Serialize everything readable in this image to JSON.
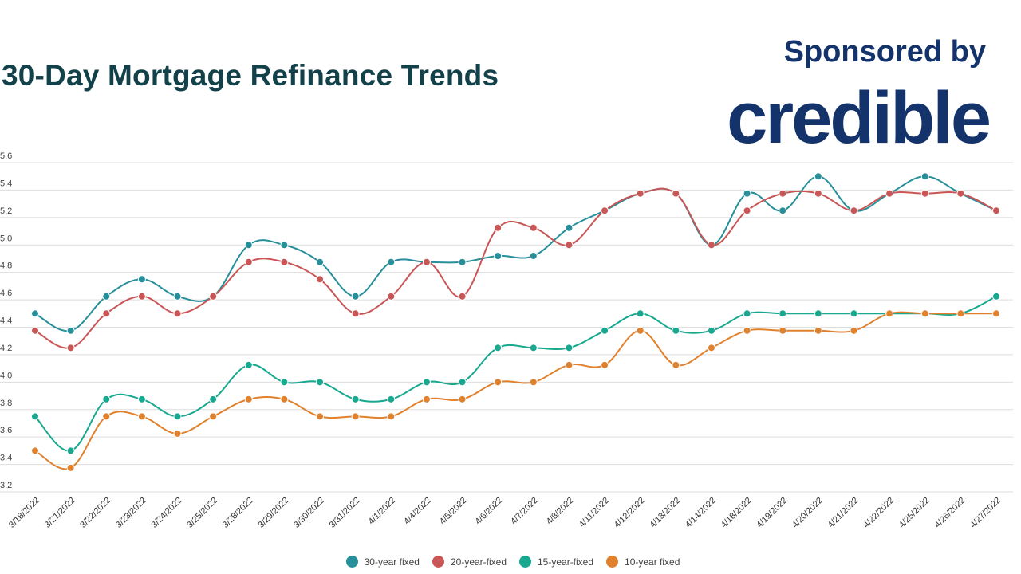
{
  "title": "30-Day Mortgage Refinance Trends",
  "sponsor": {
    "label": "Sponsored by",
    "logo_text": "credible"
  },
  "chart_data": {
    "type": "line",
    "title": "30-Day Mortgage Refinance Trends",
    "xlabel": "",
    "ylabel": "",
    "ylim": [
      3.2,
      5.6
    ],
    "yticks": [
      "3.2",
      "3.4",
      "3.6",
      "3.8",
      "4.0",
      "4.2",
      "4.4",
      "4.6",
      "4.8",
      "5.0",
      "5.2",
      "5.4",
      "5.6"
    ],
    "grid": true,
    "legend_position": "bottom",
    "categories": [
      "3/18/2022",
      "3/21/2022",
      "3/22/2022",
      "3/23/2022",
      "3/24/2022",
      "3/25/2022",
      "3/28/2022",
      "3/29/2022",
      "3/30/2022",
      "3/31/2022",
      "4/1/2022",
      "4/4/2022",
      "4/5/2022",
      "4/6/2022",
      "4/7/2022",
      "4/8/2022",
      "4/11/2022",
      "4/12/2022",
      "4/13/2022",
      "4/14/2022",
      "4/18/2022",
      "4/19/2022",
      "4/20/2022",
      "4/21/2022",
      "4/22/2022",
      "4/25/2022",
      "4/26/2022",
      "4/27/2022"
    ],
    "series": [
      {
        "name": "30-year fixed",
        "color": "#268f9a",
        "values": [
          4.5,
          4.375,
          4.625,
          4.75,
          4.625,
          4.625,
          5.0,
          5.0,
          4.875,
          4.625,
          4.875,
          4.875,
          4.875,
          4.92,
          4.92,
          5.125,
          5.25,
          5.375,
          5.375,
          5.0,
          5.375,
          5.25,
          5.5,
          5.25,
          5.375,
          5.5,
          5.375,
          5.25
        ]
      },
      {
        "name": "20-year-fixed",
        "color": "#c95656",
        "values": [
          4.375,
          4.25,
          4.5,
          4.625,
          4.5,
          4.625,
          4.875,
          4.875,
          4.75,
          4.5,
          4.625,
          4.875,
          4.625,
          5.125,
          5.125,
          5.0,
          5.25,
          5.375,
          5.375,
          5.0,
          5.25,
          5.375,
          5.375,
          5.25,
          5.375,
          5.375,
          5.375,
          5.25
        ]
      },
      {
        "name": "15-year-fixed",
        "color": "#17a88f",
        "values": [
          3.75,
          3.5,
          3.875,
          3.875,
          3.75,
          3.875,
          4.125,
          4.0,
          4.0,
          3.875,
          3.875,
          4.0,
          4.0,
          4.25,
          4.25,
          4.25,
          4.375,
          4.5,
          4.375,
          4.375,
          4.5,
          4.5,
          4.5,
          4.5,
          4.5,
          4.5,
          4.5,
          4.625
        ]
      },
      {
        "name": "10-year fixed",
        "color": "#e0812e",
        "values": [
          3.5,
          3.375,
          3.75,
          3.75,
          3.625,
          3.75,
          3.875,
          3.875,
          3.75,
          3.75,
          3.75,
          3.875,
          3.875,
          4.0,
          4.0,
          4.125,
          4.125,
          4.375,
          4.125,
          4.25,
          4.375,
          4.375,
          4.375,
          4.375,
          4.5,
          4.5,
          4.5,
          4.5
        ]
      }
    ]
  }
}
